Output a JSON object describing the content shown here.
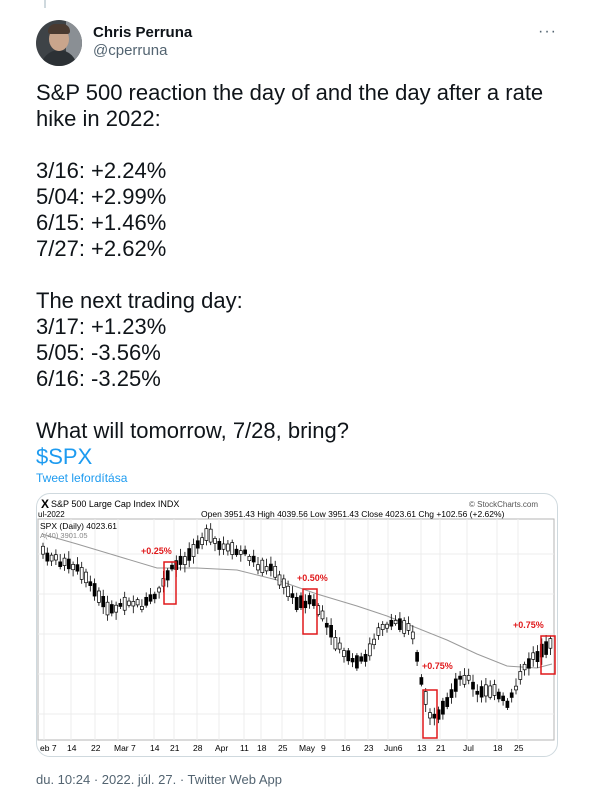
{
  "author": {
    "name": "Chris Perruna",
    "handle": "@cperruna"
  },
  "more_label": "···",
  "tweet_lines": [
    "S&P 500 reaction the day of and the day after a rate",
    "hike in 2022:",
    "",
    "3/16: +2.24%",
    "5/04: +2.99%",
    "6/15: +1.46%",
    "7/27: +2.62%",
    "",
    "The next trading day:",
    "3/17: +1.23%",
    "5/05: -3.56%",
    "6/16: -3.25%",
    "",
    "What will tomorrow, 7/28, bring?"
  ],
  "cashtag": "$SPX",
  "translate_label": "Tweet lefordítása",
  "chart": {
    "header_left": "S&P 500 Large Cap Index INDX",
    "header_brand": "© StockCharts.com",
    "ohlc_line": "Open 3951.43 High 4039.56 Low 3951.43 Close 4023.61 Chg +102.56 (+2.62%)",
    "date_fragment": "ul-2022",
    "series_label": "SPX (Daily) 4023.61",
    "ma_label": "A(40) 3901.05",
    "annotations": [
      "+0.25%",
      "+0.50%",
      "+0.75%",
      "+0.75%"
    ],
    "x_ticks": [
      "eb 7",
      "14",
      "22",
      "Mar 7",
      "14",
      "21",
      "28",
      "Apr",
      "11",
      "18",
      "25",
      "May",
      "9",
      "16",
      "23",
      "Jun6",
      "13",
      "21",
      "Jul",
      "18",
      "25"
    ],
    "colors": {
      "annotation": "#e0191b",
      "ma": "#9a9a9a",
      "candle": "#000000"
    }
  },
  "chart_data": {
    "type": "candlestick",
    "title": "S&P 500 Large Cap Index INDX",
    "series": [
      {
        "name": "SPX (Daily)",
        "last": 4023.61
      }
    ],
    "moving_average": {
      "name": "A(40)",
      "last": 3901.05
    },
    "ohlc_last": {
      "open": 3951.43,
      "high": 4039.56,
      "low": 3951.43,
      "close": 4023.61,
      "chg": 102.56,
      "chg_pct": 2.62
    },
    "x_ticks": [
      "eb 7",
      "14",
      "22",
      "Mar 7",
      "14",
      "21",
      "28",
      "Apr",
      "11",
      "18",
      "25",
      "May",
      "9",
      "16",
      "23",
      "Jun6",
      "13",
      "21",
      "Jul",
      "18",
      "25"
    ],
    "annotations": [
      "+0.25%",
      "+0.50%",
      "+0.75%",
      "+0.75%"
    ]
  },
  "footer": "du. 10:24 · 2022. júl. 27. · Twitter Web App"
}
